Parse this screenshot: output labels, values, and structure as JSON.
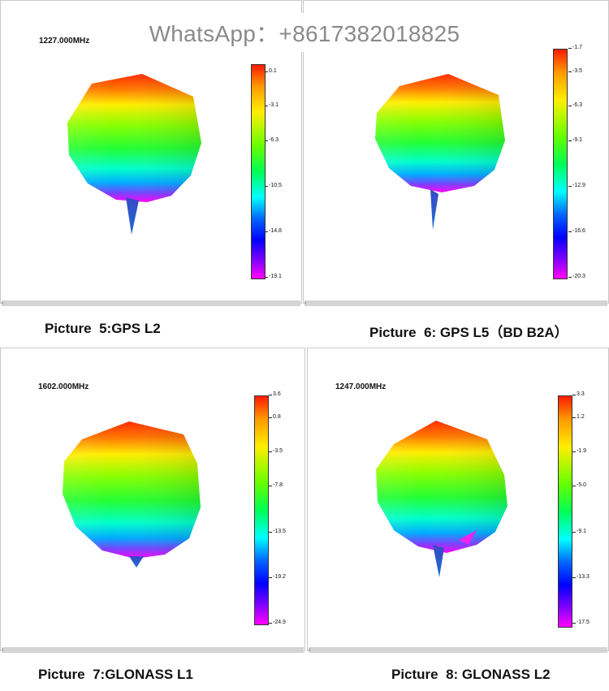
{
  "watermark": "WhatsApp：+8617382018825",
  "panels": [
    {
      "freq": "1227.000MHz",
      "caption": "Picture  5:GPS L2",
      "ticks": [
        "0.1",
        "-3.1",
        "-6.3",
        "-10.5",
        "-14.8",
        "-19.1"
      ]
    },
    {
      "freq": "",
      "caption": "Picture  6: GPS L5（BD B2A）",
      "ticks": [
        "-1.7",
        "-3.5",
        "-6.3",
        "-9.1",
        "-12.9",
        "-16.6",
        "-20.3"
      ]
    },
    {
      "freq": "1602.000MHz",
      "caption": "Picture  7:GLONASS L1",
      "ticks": [
        "3.6",
        "0.8",
        "-3.5",
        "-7.8",
        "-13.5",
        "-19.2",
        "-24.9"
      ]
    },
    {
      "freq": "1247.000MHz",
      "caption": "Picture  8: GLONASS L2",
      "ticks": [
        "3.3",
        "1.2",
        "-1.9",
        "-5.0",
        "-9.1",
        "-13.3",
        "-17.5"
      ]
    }
  ],
  "colors": {
    "top": "#ff2200",
    "mid": "#33ff00",
    "low": "#00e0ff",
    "bottom": "#ee00ff"
  }
}
